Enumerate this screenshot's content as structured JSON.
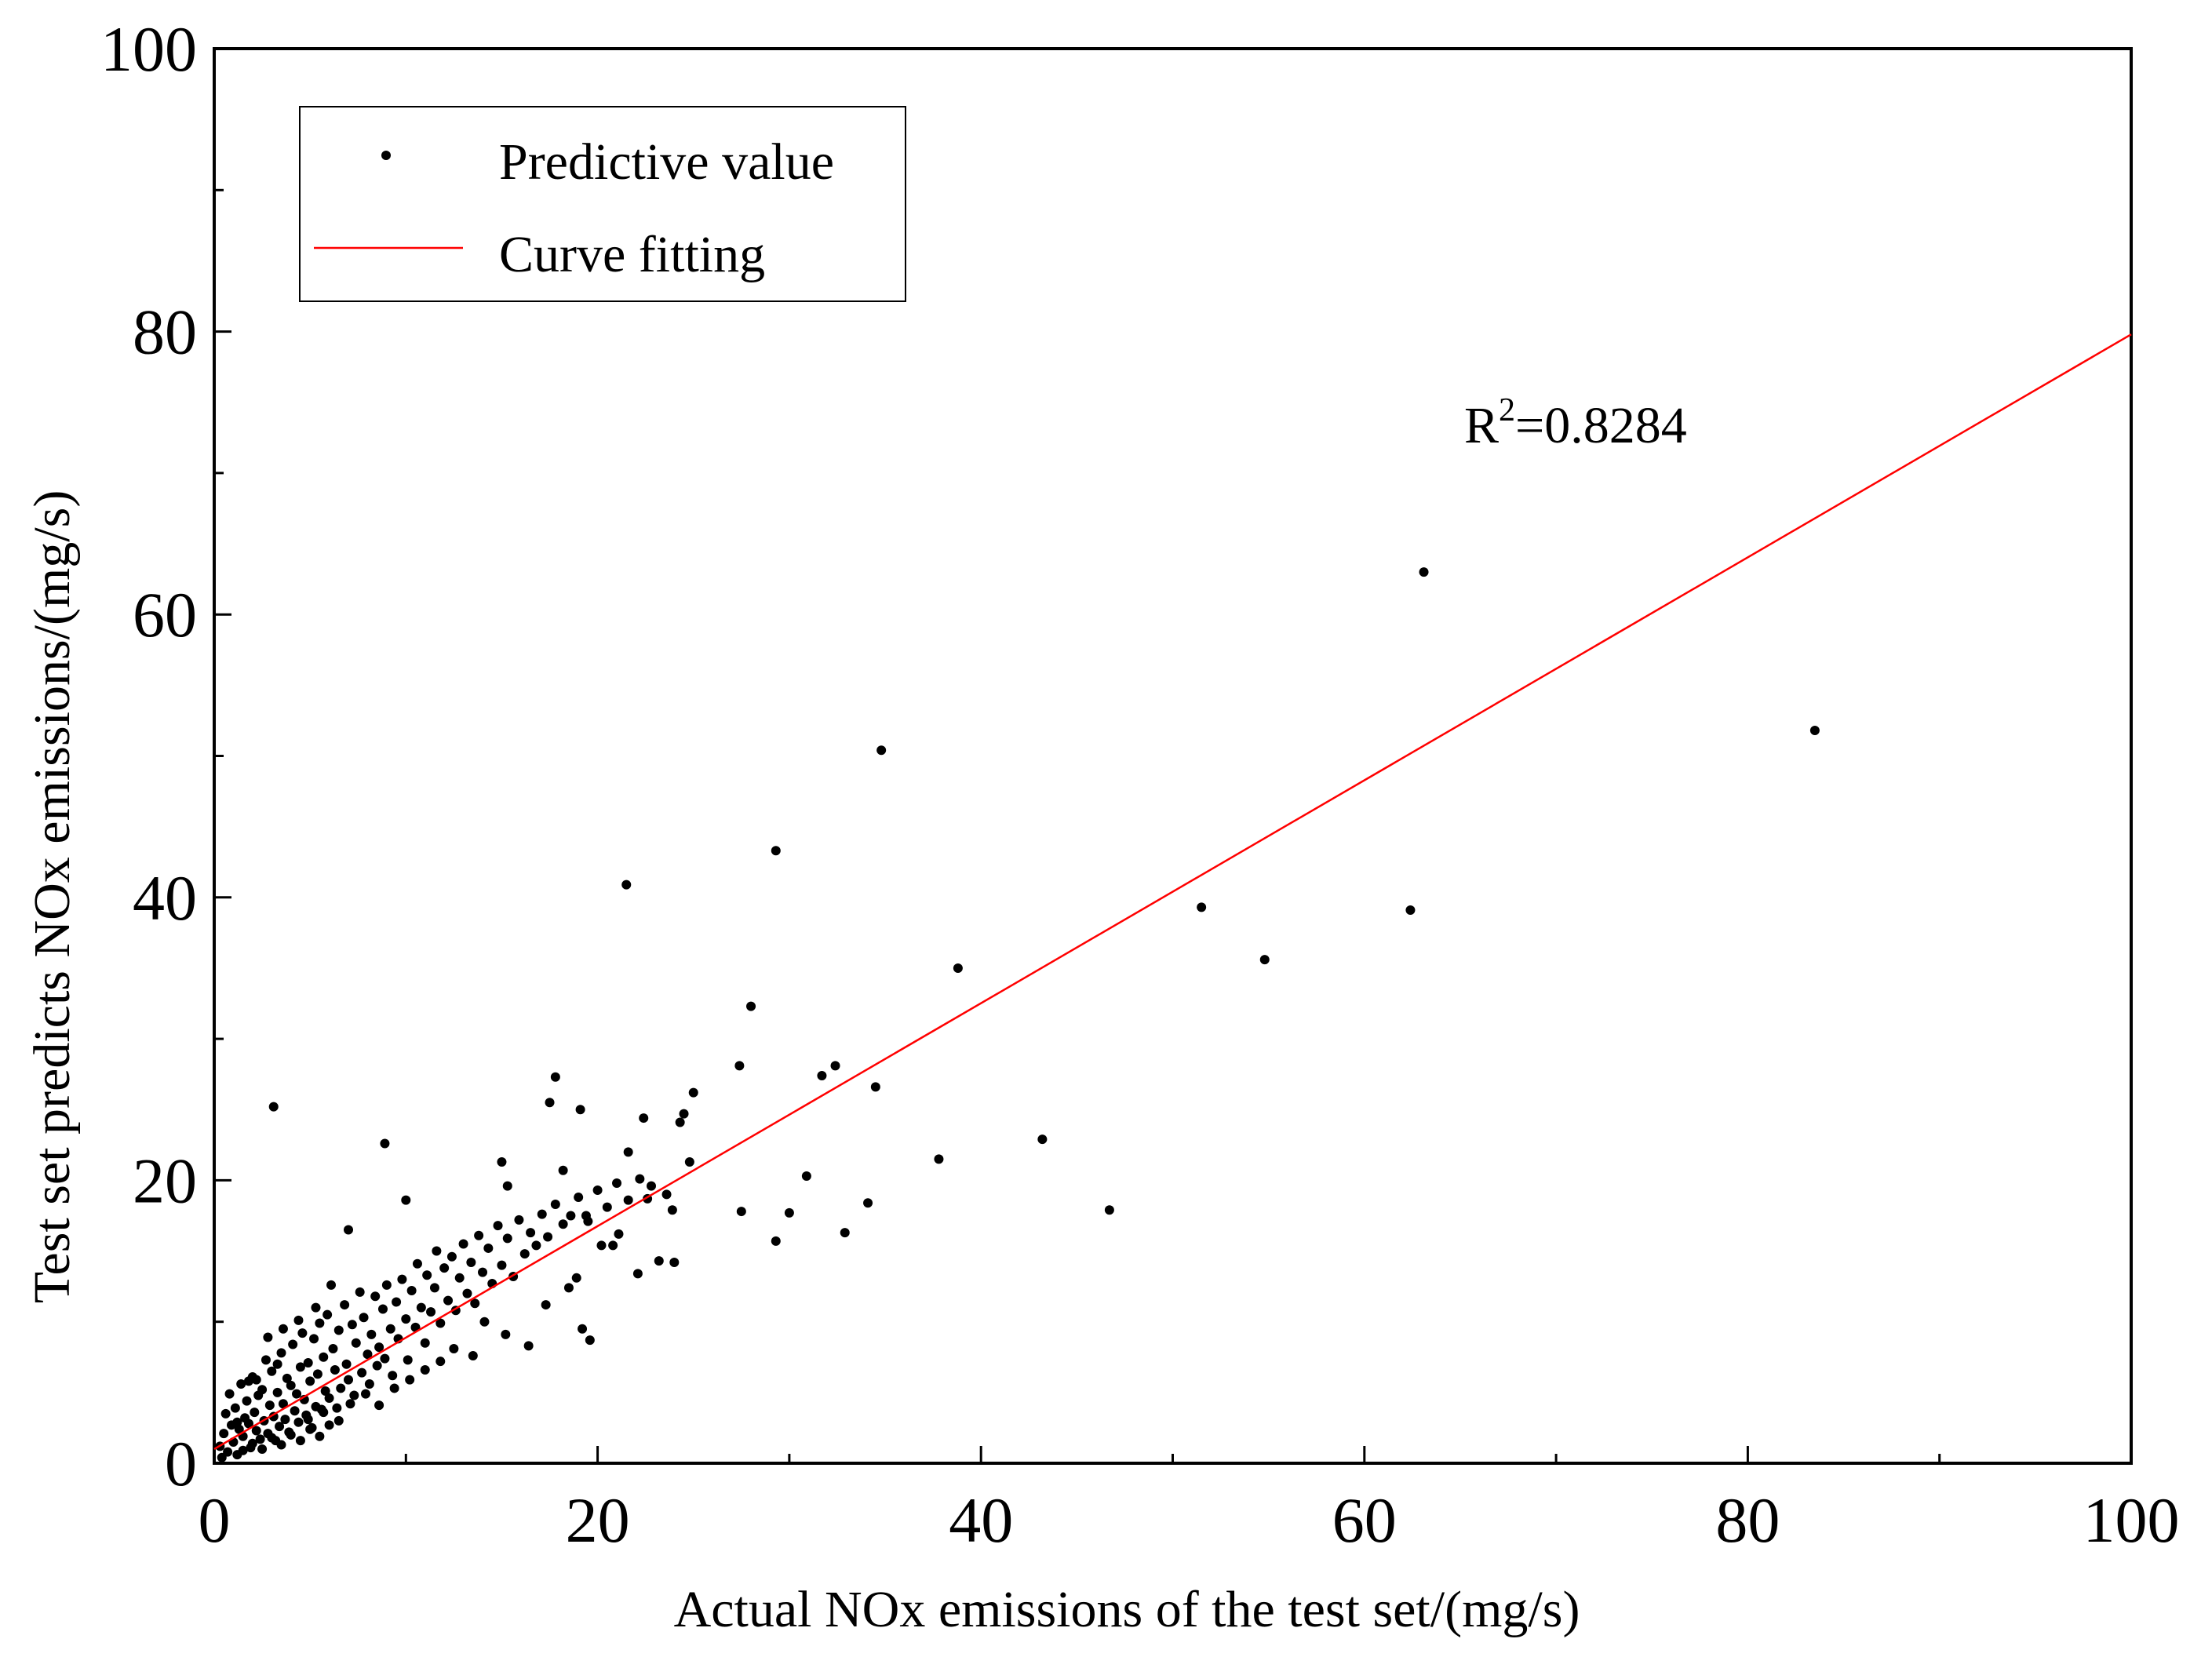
{
  "chart_data": {
    "type": "scatter",
    "title": "",
    "xlabel": "Actual NOx emissions of the test set/(mg/s)",
    "ylabel": "Test set predicts NOx emissions/(mg/s)",
    "xlim": [
      0,
      100
    ],
    "ylim": [
      0,
      100
    ],
    "x_ticks": [
      0,
      20,
      40,
      60,
      80,
      100
    ],
    "y_ticks": [
      0,
      20,
      40,
      60,
      80,
      100
    ],
    "grid": false,
    "legend_position": "top-left",
    "legend": [
      {
        "label": "Predictive value",
        "marker": "dot"
      },
      {
        "label": "Curve fitting",
        "marker": "line"
      }
    ],
    "annotation": {
      "base": "R",
      "sup": "2",
      "rest": "=0.8284"
    },
    "series": [
      {
        "name": "Predictive value",
        "kind": "points",
        "color": "#000000",
        "points": [
          [
            0.3,
            1.2
          ],
          [
            0.5,
            2.1
          ],
          [
            0.6,
            3.5
          ],
          [
            0.7,
            0.8
          ],
          [
            0.8,
            4.9
          ],
          [
            0.9,
            2.7
          ],
          [
            1.0,
            1.5
          ],
          [
            1.1,
            3.9
          ],
          [
            1.2,
            0.6
          ],
          [
            1.3,
            2.4
          ],
          [
            1.4,
            5.6
          ],
          [
            1.5,
            1.9
          ],
          [
            1.6,
            3.2
          ],
          [
            1.7,
            4.4
          ],
          [
            1.8,
            2.8
          ],
          [
            1.9,
            1.1
          ],
          [
            2.0,
            6.1
          ],
          [
            2.1,
            3.6
          ],
          [
            2.2,
            2.3
          ],
          [
            2.3,
            4.8
          ],
          [
            2.4,
            1.7
          ],
          [
            2.5,
            5.2
          ],
          [
            2.6,
            3.0
          ],
          [
            2.7,
            7.3
          ],
          [
            2.8,
            2.1
          ],
          [
            2.9,
            4.1
          ],
          [
            3.0,
            6.5
          ],
          [
            3.1,
            3.3
          ],
          [
            3.2,
            1.6
          ],
          [
            3.3,
            5.0
          ],
          [
            3.4,
            2.6
          ],
          [
            3.5,
            7.8
          ],
          [
            3.6,
            4.2
          ],
          [
            3.7,
            3.1
          ],
          [
            3.8,
            6.0
          ],
          [
            3.9,
            2.2
          ],
          [
            4.0,
            5.5
          ],
          [
            4.1,
            8.4
          ],
          [
            4.2,
            3.7
          ],
          [
            4.3,
            4.9
          ],
          [
            4.4,
            2.9
          ],
          [
            4.5,
            6.8
          ],
          [
            4.6,
            9.2
          ],
          [
            4.7,
            4.5
          ],
          [
            4.8,
            3.4
          ],
          [
            4.9,
            7.1
          ],
          [
            5.0,
            5.8
          ],
          [
            5.1,
            2.5
          ],
          [
            5.2,
            8.8
          ],
          [
            5.3,
            4.0
          ],
          [
            5.4,
            6.3
          ],
          [
            5.5,
            9.9
          ],
          [
            5.6,
            3.8
          ],
          [
            5.7,
            7.5
          ],
          [
            5.8,
            5.1
          ],
          [
            5.9,
            10.5
          ],
          [
            6.0,
            4.6
          ],
          [
            6.2,
            8.1
          ],
          [
            6.3,
            6.6
          ],
          [
            6.4,
            3.9
          ],
          [
            6.5,
            9.4
          ],
          [
            6.6,
            5.3
          ],
          [
            6.8,
            11.2
          ],
          [
            6.9,
            7.0
          ],
          [
            7.0,
            5.9
          ],
          [
            7.2,
            9.8
          ],
          [
            7.3,
            4.8
          ],
          [
            7.4,
            8.5
          ],
          [
            7.6,
            12.1
          ],
          [
            7.7,
            6.4
          ],
          [
            7.8,
            10.3
          ],
          [
            8.0,
            7.7
          ],
          [
            8.1,
            5.6
          ],
          [
            8.2,
            9.1
          ],
          [
            8.4,
            11.8
          ],
          [
            8.5,
            6.9
          ],
          [
            8.6,
            8.2
          ],
          [
            8.8,
            10.9
          ],
          [
            8.9,
            7.4
          ],
          [
            9.0,
            12.6
          ],
          [
            9.2,
            9.5
          ],
          [
            9.3,
            6.2
          ],
          [
            9.5,
            11.4
          ],
          [
            9.6,
            8.8
          ],
          [
            9.8,
            13.0
          ],
          [
            10.0,
            10.2
          ],
          [
            10.1,
            7.3
          ],
          [
            10.3,
            12.2
          ],
          [
            10.5,
            9.6
          ],
          [
            10.6,
            14.1
          ],
          [
            10.8,
            11.0
          ],
          [
            11.0,
            8.5
          ],
          [
            11.1,
            13.3
          ],
          [
            11.3,
            10.7
          ],
          [
            11.5,
            12.4
          ],
          [
            11.6,
            15.0
          ],
          [
            11.8,
            9.9
          ],
          [
            12.0,
            13.8
          ],
          [
            12.2,
            11.5
          ],
          [
            12.4,
            14.6
          ],
          [
            12.6,
            10.8
          ],
          [
            12.8,
            13.1
          ],
          [
            13.0,
            15.5
          ],
          [
            13.2,
            12.0
          ],
          [
            13.4,
            14.2
          ],
          [
            13.6,
            11.3
          ],
          [
            13.8,
            16.1
          ],
          [
            14.0,
            13.5
          ],
          [
            14.3,
            15.2
          ],
          [
            14.5,
            12.7
          ],
          [
            14.8,
            16.8
          ],
          [
            15.0,
            14.0
          ],
          [
            15.3,
            15.9
          ],
          [
            15.6,
            13.2
          ],
          [
            15.9,
            17.2
          ],
          [
            16.2,
            14.8
          ],
          [
            16.5,
            16.3
          ],
          [
            16.8,
            15.4
          ],
          [
            17.1,
            17.6
          ],
          [
            17.4,
            16.0
          ],
          [
            17.8,
            18.3
          ],
          [
            18.2,
            16.9
          ],
          [
            18.6,
            17.5
          ],
          [
            19.0,
            18.8
          ],
          [
            19.5,
            17.1
          ],
          [
            20.0,
            19.3
          ],
          [
            20.5,
            18.1
          ],
          [
            21.0,
            19.8
          ],
          [
            21.6,
            18.6
          ],
          [
            22.2,
            20.1
          ],
          [
            1.5,
            0.9
          ],
          [
            2.0,
            1.4
          ],
          [
            2.5,
            1.0
          ],
          [
            3.0,
            1.8
          ],
          [
            3.5,
            1.3
          ],
          [
            4.0,
            2.0
          ],
          [
            4.5,
            1.6
          ],
          [
            5.0,
            2.4
          ],
          [
            5.5,
            1.9
          ],
          [
            6.0,
            2.7
          ],
          [
            0.4,
            0.4
          ],
          [
            1.2,
            2.9
          ],
          [
            2.2,
            5.9
          ],
          [
            3.3,
            7.0
          ],
          [
            1.8,
            5.8
          ],
          [
            2.8,
            8.9
          ],
          [
            3.6,
            9.5
          ],
          [
            4.4,
            10.1
          ],
          [
            5.3,
            11.0
          ],
          [
            6.1,
            12.6
          ],
          [
            4.9,
            3.1
          ],
          [
            5.7,
            3.6
          ],
          [
            6.5,
            3.0
          ],
          [
            7.1,
            4.2
          ],
          [
            7.9,
            4.9
          ],
          [
            8.6,
            4.1
          ],
          [
            9.4,
            5.3
          ],
          [
            10.2,
            5.9
          ],
          [
            11.0,
            6.6
          ],
          [
            11.8,
            7.2
          ],
          [
            12.5,
            8.1
          ],
          [
            13.5,
            7.6
          ],
          [
            14.1,
            10.0
          ],
          [
            15.2,
            9.1
          ],
          [
            16.4,
            8.3
          ],
          [
            17.3,
            11.2
          ],
          [
            18.5,
            12.4
          ],
          [
            19.2,
            9.5
          ],
          [
            19.6,
            8.7
          ],
          [
            18.9,
            13.1
          ],
          [
            3.1,
            25.2
          ],
          [
            8.9,
            22.6
          ],
          [
            10.0,
            18.6
          ],
          [
            7.0,
            16.5
          ],
          [
            17.8,
            27.3
          ],
          [
            17.5,
            25.5
          ],
          [
            19.1,
            25.0
          ],
          [
            15.0,
            21.3
          ],
          [
            15.3,
            19.6
          ],
          [
            18.2,
            20.7
          ],
          [
            21.5,
            40.9
          ],
          [
            22.4,
            24.4
          ],
          [
            24.3,
            24.1
          ],
          [
            24.5,
            24.7
          ],
          [
            25.0,
            26.2
          ],
          [
            21.6,
            22.0
          ],
          [
            22.1,
            13.4
          ],
          [
            23.2,
            14.3
          ],
          [
            24.0,
            14.2
          ],
          [
            24.8,
            21.3
          ],
          [
            27.4,
            28.1
          ],
          [
            28.0,
            32.3
          ],
          [
            29.3,
            43.3
          ],
          [
            27.5,
            17.8
          ],
          [
            29.3,
            15.7
          ],
          [
            30.0,
            17.7
          ],
          [
            30.9,
            20.3
          ],
          [
            31.7,
            27.4
          ],
          [
            32.4,
            28.1
          ],
          [
            32.9,
            16.3
          ],
          [
            34.1,
            18.4
          ],
          [
            34.5,
            26.6
          ],
          [
            34.8,
            50.4
          ],
          [
            37.8,
            21.5
          ],
          [
            38.8,
            35.0
          ],
          [
            43.2,
            22.9
          ],
          [
            46.7,
            17.9
          ],
          [
            51.5,
            39.3
          ],
          [
            54.8,
            35.6
          ],
          [
            62.4,
            39.1
          ],
          [
            63.1,
            63.0
          ],
          [
            83.5,
            51.8
          ],
          [
            22.8,
            19.6
          ],
          [
            23.6,
            19.0
          ],
          [
            20.8,
            15.4
          ],
          [
            20.2,
            15.4
          ],
          [
            19.4,
            17.5
          ],
          [
            22.6,
            18.7
          ],
          [
            21.1,
            16.2
          ],
          [
            23.9,
            17.9
          ]
        ]
      },
      {
        "name": "Curve fitting",
        "kind": "line",
        "color": "#ff0000",
        "points": [
          [
            0,
            1.0
          ],
          [
            100,
            79.8
          ]
        ]
      }
    ]
  }
}
